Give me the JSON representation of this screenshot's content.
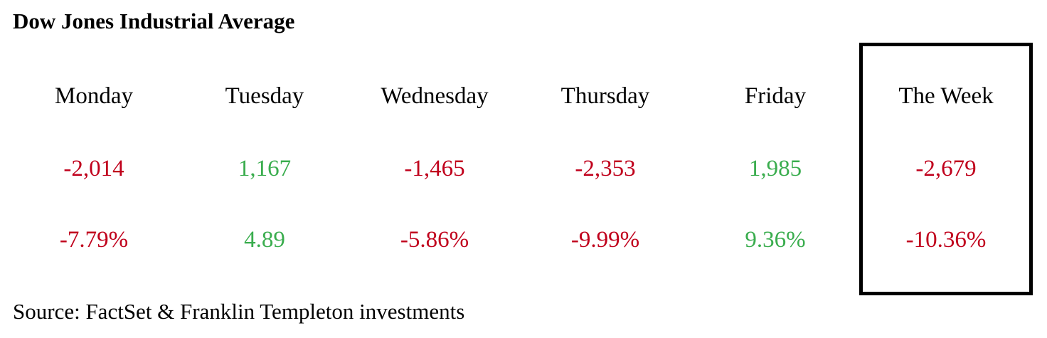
{
  "title": "Dow Jones Industrial Average",
  "table": {
    "header": [
      "Monday",
      "Tuesday",
      "Wednesday",
      "Thursday",
      "Friday",
      "The Week"
    ],
    "rows": [
      [
        "-2,014",
        "1,167",
        "-1,465",
        "-2,353",
        "1,985",
        "-2,679"
      ],
      [
        "-7.79%",
        "4.89",
        "-5.86%",
        "-9.99%",
        "9.36%",
        "-10.36%"
      ]
    ]
  },
  "source": "Source:  FactSet & Franklin Templeton investments"
}
